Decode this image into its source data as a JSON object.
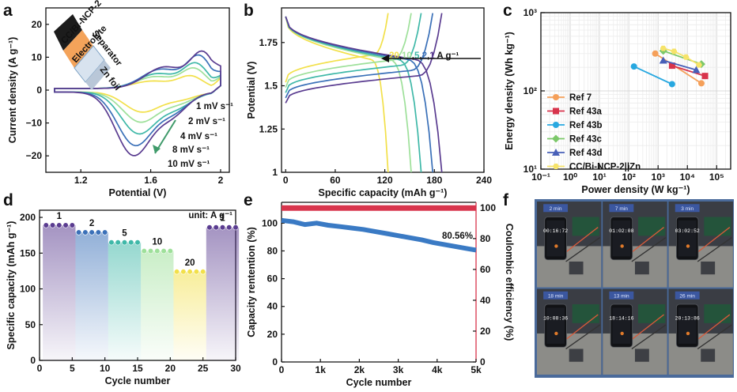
{
  "chart_data": [
    {
      "panel": "a",
      "type": "line",
      "xlabel": "Potential (V)",
      "ylabel": "Current density (A g⁻¹)",
      "xlim": [
        1.0,
        2.05
      ],
      "ylim": [
        -25,
        25
      ],
      "xticks": [
        "1.2",
        "1.6",
        "2"
      ],
      "yticks": [
        "−20",
        "−10",
        "0",
        "10",
        "20"
      ],
      "inset_labels": [
        "CC/Bi-NCP-2",
        "Electrolyte",
        "Separator",
        "Zn foil"
      ],
      "series": [
        {
          "name": "1 mV s⁻¹",
          "color": "#f2e04a",
          "peak_ox": [
            1.83,
            5
          ],
          "peak_red": [
            1.55,
            -6
          ]
        },
        {
          "name": "2 mV s⁻¹",
          "color": "#9ee09a",
          "peak_ox": [
            1.85,
            8
          ],
          "peak_red": [
            1.54,
            -9
          ]
        },
        {
          "name": "4 mV s⁻¹",
          "color": "#3fb8a8",
          "peak_ox": [
            1.86,
            10
          ],
          "peak_red": [
            1.53,
            -12.5
          ]
        },
        {
          "name": "8 mV s⁻¹",
          "color": "#3a70b8",
          "peak_ox": [
            1.88,
            13
          ],
          "peak_red": [
            1.51,
            -16
          ]
        },
        {
          "name": "10 mV s⁻¹",
          "color": "#5a3c90",
          "peak_ox": [
            1.9,
            14.5
          ],
          "peak_red": [
            1.5,
            -19
          ]
        }
      ]
    },
    {
      "panel": "b",
      "type": "line",
      "xlabel": "Specific capacity (mAh g⁻¹)",
      "ylabel": "Potential (V)",
      "xlim": [
        -5,
        240
      ],
      "ylim": [
        1.0,
        1.95
      ],
      "xticks": [
        "0",
        "60",
        "120",
        "180",
        "240"
      ],
      "yticks": [
        "1",
        "1.25",
        "1.5",
        "1.75"
      ],
      "annotation_rates": [
        "20",
        "10",
        "5",
        "2",
        "1"
      ],
      "annotation_unit": " A g⁻¹",
      "annotation_colors": [
        "#f2e04a",
        "#9ee09a",
        "#3fb8a8",
        "#3a70b8",
        "#5a3c90"
      ],
      "series": [
        {
          "name": "20 A g⁻¹",
          "color": "#f2e04a",
          "capacity": 124
        },
        {
          "name": "10 A g⁻¹",
          "color": "#9ee09a",
          "capacity": 152
        },
        {
          "name": "5 A g⁻¹",
          "color": "#3fb8a8",
          "capacity": 164
        },
        {
          "name": "2 A g⁻¹",
          "color": "#3a70b8",
          "capacity": 178
        },
        {
          "name": "1 A g⁻¹",
          "color": "#5a3c90",
          "capacity": 189
        }
      ]
    },
    {
      "panel": "c",
      "type": "scatter",
      "xlabel": "Power density (W kg⁻¹)",
      "ylabel": "Energy density (Wh kg⁻¹)",
      "xscale": "log",
      "yscale": "log",
      "xlim": [
        0.1,
        300000
      ],
      "ylim": [
        10,
        1000
      ],
      "xticks": [
        "10⁻¹",
        "10⁰",
        "10¹",
        "10²",
        "10³",
        "10⁴",
        "10⁵"
      ],
      "yticks": [
        "10¹",
        "10²",
        "10³"
      ],
      "legend_position": "bottom-left",
      "series": [
        {
          "name": "Ref 7",
          "color": "#f5a05a",
          "marker": "circle",
          "points": [
            [
              800,
              300
            ],
            [
              30000,
              125
            ]
          ]
        },
        {
          "name": "Ref 43a",
          "color": "#d8344c",
          "marker": "square",
          "points": [
            [
              3000,
              210
            ],
            [
              40000,
              155
            ]
          ]
        },
        {
          "name": "Ref 43b",
          "color": "#28a8e0",
          "marker": "circle",
          "points": [
            [
              150,
              205
            ],
            [
              3000,
              122
            ]
          ]
        },
        {
          "name": "Ref 43c",
          "color": "#7cc86a",
          "marker": "diamond",
          "points": [
            [
              1500,
              325
            ],
            [
              30000,
              220
            ]
          ]
        },
        {
          "name": "Ref 43d",
          "color": "#4860b8",
          "marker": "triangle",
          "points": [
            [
              1500,
              245
            ],
            [
              20000,
              185
            ]
          ]
        },
        {
          "name": "CC/Bi-NCP-2||Zn",
          "color": "#f6e36a",
          "marker": "hexagon",
          "points": [
            [
              1500,
              350
            ],
            [
              3500,
              320
            ],
            [
              9000,
              270
            ],
            [
              25000,
              215
            ]
          ]
        }
      ]
    },
    {
      "panel": "d",
      "type": "bar",
      "xlabel": "Cycle number",
      "ylabel": "Specific capacity (mAh g⁻¹)",
      "xlim": [
        0,
        30
      ],
      "ylim": [
        0,
        210
      ],
      "xticks": [
        "0",
        "5",
        "10",
        "15",
        "20",
        "25",
        "30"
      ],
      "yticks": [
        "0",
        "50",
        "100",
        "150",
        "200"
      ],
      "unit_label": "unit: A g⁻¹",
      "groups": [
        {
          "label": "1",
          "start": 1,
          "end": 5,
          "value": 189,
          "color": "#5a3c90"
        },
        {
          "label": "2",
          "start": 6,
          "end": 10,
          "value": 179,
          "color": "#3a70b8"
        },
        {
          "label": "5",
          "start": 11,
          "end": 15,
          "value": 165,
          "color": "#3fb8a8"
        },
        {
          "label": "10",
          "start": 16,
          "end": 20,
          "value": 153,
          "color": "#9ee09a"
        },
        {
          "label": "20",
          "start": 21,
          "end": 25,
          "value": 124,
          "color": "#f2e04a"
        },
        {
          "label": "1",
          "start": 26,
          "end": 30,
          "value": 186,
          "color": "#5a3c90"
        }
      ]
    },
    {
      "panel": "e",
      "type": "line",
      "xlabel": "Cycle number",
      "ylabel": "Capacity rentention (%)",
      "ylabel_right": "Coulombic efficiency (%)",
      "xlim": [
        0,
        5000
      ],
      "ylim": [
        0,
        115
      ],
      "ylim_right": [
        0,
        103.5
      ],
      "xticks": [
        "0",
        "1k",
        "2k",
        "3k",
        "4k",
        "5k"
      ],
      "yticks": [
        "0",
        "20",
        "40",
        "60",
        "80",
        "100"
      ],
      "yticks_right": [
        "0",
        "20",
        "40",
        "60",
        "80",
        "100"
      ],
      "annotation": "80.56%",
      "series": [
        {
          "name": "Capacity retention",
          "color": "#3a7ac4",
          "axis": "left",
          "x": [
            0,
            300,
            600,
            900,
            1200,
            1500,
            1800,
            2100,
            2400,
            2700,
            3000,
            3300,
            3600,
            3900,
            4200,
            4500,
            4800,
            5000
          ],
          "y": [
            102,
            101,
            99,
            100,
            98.5,
            97.5,
            96.5,
            95.5,
            94,
            92.5,
            91,
            89.5,
            88,
            86,
            84.5,
            83,
            81.5,
            80.6
          ]
        },
        {
          "name": "Coulombic efficiency",
          "color": "#d8344c",
          "axis": "right",
          "x": [
            0,
            5000
          ],
          "y": [
            99.8,
            99.8
          ]
        }
      ]
    }
  ],
  "panels": {
    "a": "a",
    "b": "b",
    "c": "c",
    "d": "d",
    "e": "e",
    "f": "f"
  },
  "photos": [
    {
      "time": "2 min",
      "readout": "00:16:72"
    },
    {
      "time": "7 min",
      "readout": "01:02:08"
    },
    {
      "time": "3 min",
      "readout": "03:02:52"
    },
    {
      "time": "18 min",
      "readout": "10:08:36"
    },
    {
      "time": "13 min",
      "readout": "18:14:16"
    },
    {
      "time": "26 min",
      "readout": "20:13:86"
    }
  ]
}
